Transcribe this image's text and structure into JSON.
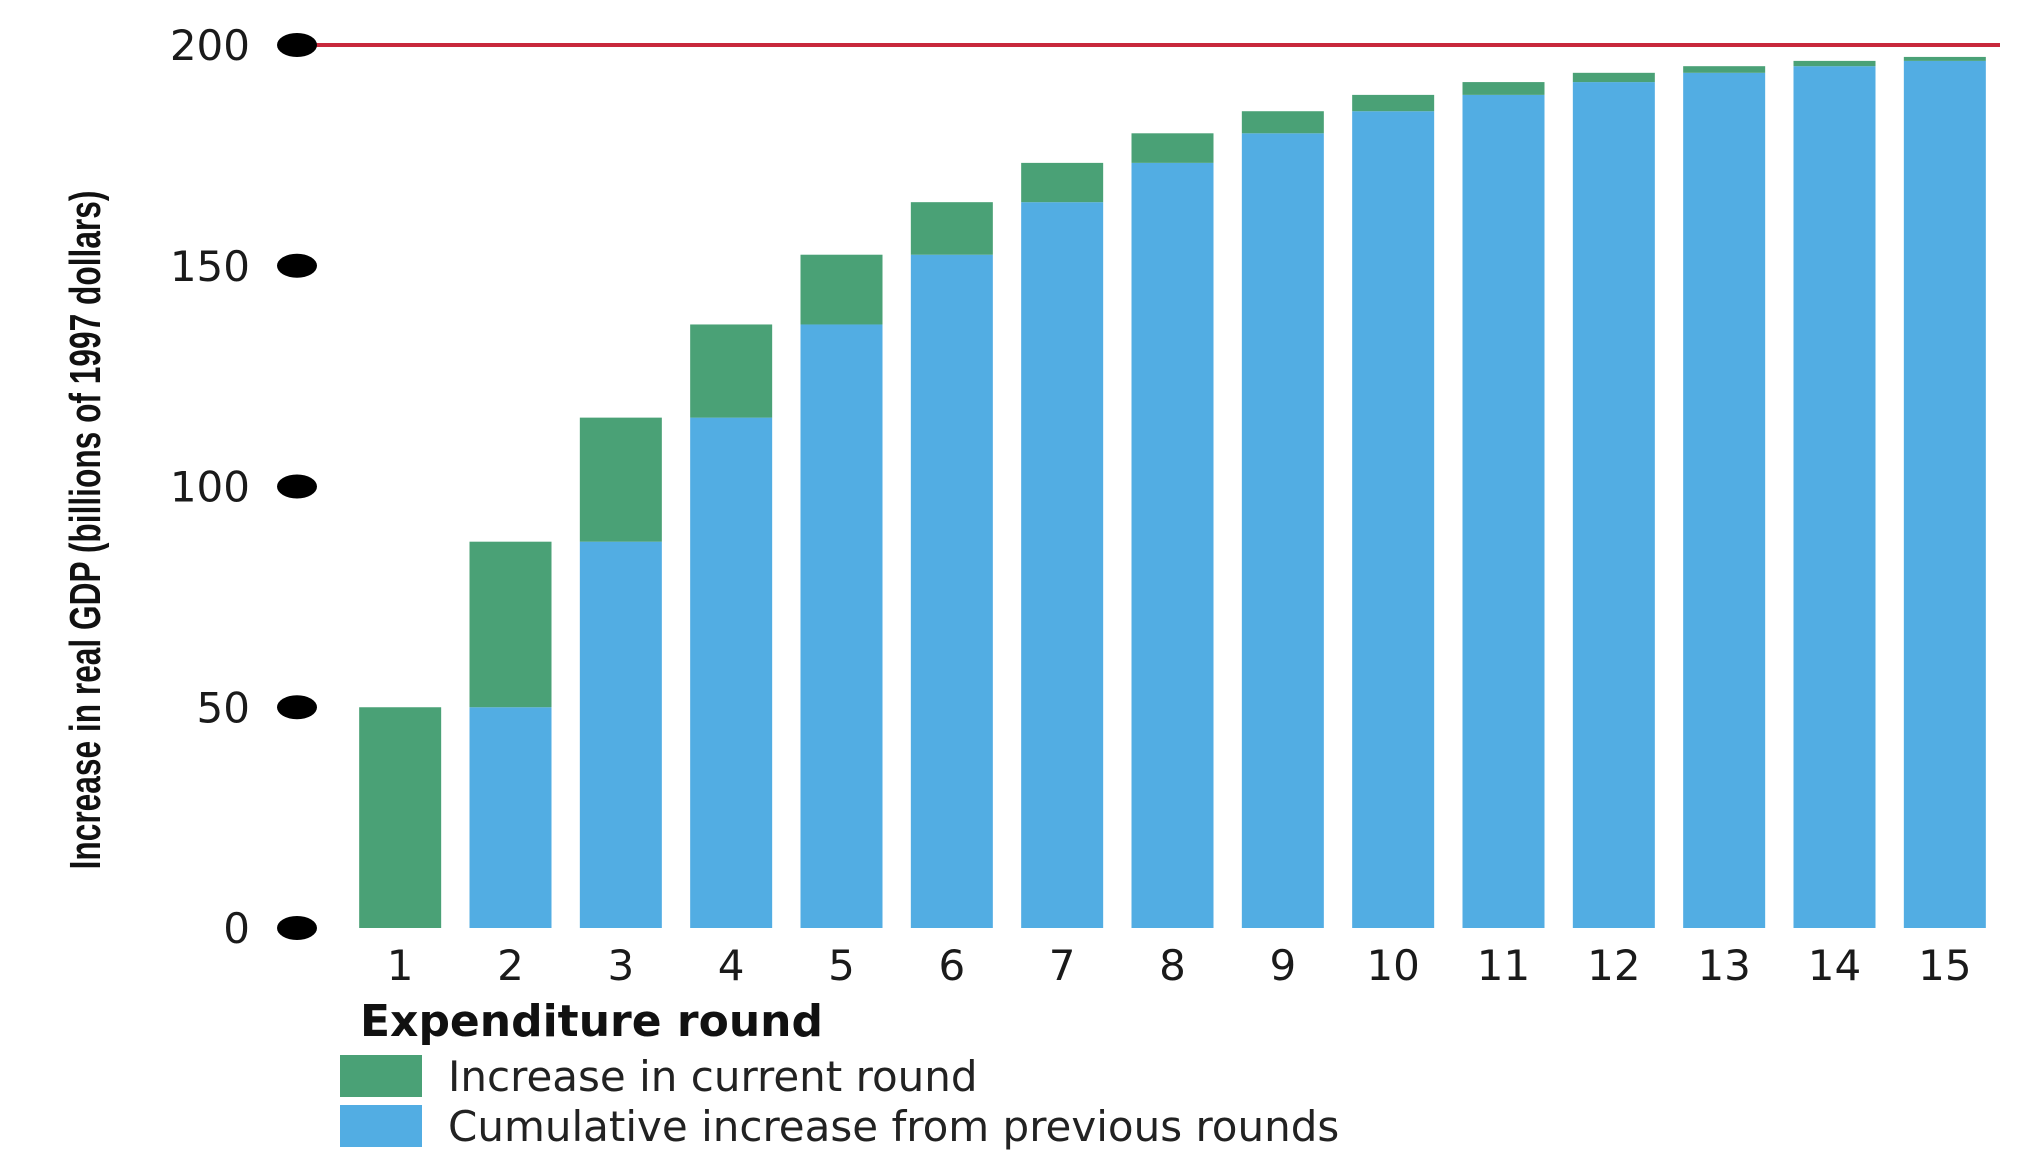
{
  "chart_data": {
    "type": "bar",
    "stacked": true,
    "xlabel": "Expenditure round",
    "ylabel": "Increase in real GDP (billions of 1997 dollars)",
    "categories": [
      "1",
      "2",
      "3",
      "4",
      "5",
      "6",
      "7",
      "8",
      "9",
      "10",
      "11",
      "12",
      "13",
      "14",
      "15"
    ],
    "ylim": [
      0,
      200
    ],
    "yticks": [
      0,
      50,
      100,
      150,
      200
    ],
    "reference_line": 200,
    "series": [
      {
        "name": "Cumulative increase from previous rounds",
        "color": "#52ade3",
        "values": [
          0,
          50,
          87.5,
          115.6,
          136.7,
          152.5,
          164.4,
          173.3,
          180,
          185,
          188.7,
          191.6,
          193.7,
          195.2,
          196.4
        ]
      },
      {
        "name": "Increase in current round",
        "color": "#4aa176",
        "values": [
          50,
          37.5,
          28.1,
          21.1,
          15.8,
          11.9,
          8.9,
          6.7,
          5,
          3.7,
          2.9,
          2.1,
          1.5,
          1.2,
          0.9
        ]
      }
    ],
    "legend": [
      {
        "label": "Increase in current round",
        "color": "#4aa176"
      },
      {
        "label": "Cumulative increase from previous rounds",
        "color": "#52ade3"
      }
    ],
    "reference_color": "#c8283c",
    "grid": false,
    "legend_position": "bottom-left"
  }
}
